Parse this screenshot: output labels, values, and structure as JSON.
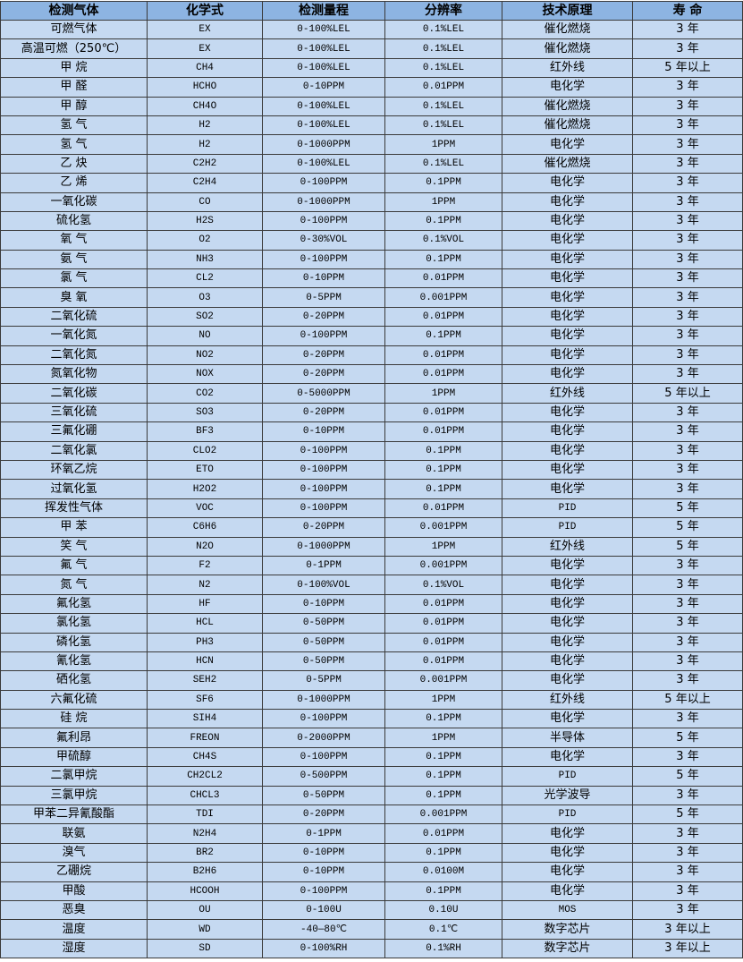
{
  "table": {
    "headers": [
      "检测气体",
      "化学式",
      "检测量程",
      "分辨率",
      "技术原理",
      "寿 命"
    ],
    "rows": [
      [
        "可燃气体",
        "EX",
        "0-100%LEL",
        "0.1%LEL",
        "催化燃烧",
        "3 年"
      ],
      [
        "高温可燃（250℃）",
        "EX",
        "0-100%LEL",
        "0.1%LEL",
        "催化燃烧",
        "3 年"
      ],
      [
        "甲 烷",
        "CH4",
        "0-100%LEL",
        "0.1%LEL",
        "红外线",
        "5 年以上"
      ],
      [
        "甲 醛",
        "HCHO",
        "0-10PPM",
        "0.01PPM",
        "电化学",
        "3 年"
      ],
      [
        "甲 醇",
        "CH4O",
        "0-100%LEL",
        "0.1%LEL",
        "催化燃烧",
        "3 年"
      ],
      [
        "氢 气",
        "H2",
        "0-100%LEL",
        "0.1%LEL",
        "催化燃烧",
        "3 年"
      ],
      [
        "氢 气",
        "H2",
        "0-1000PPM",
        "1PPM",
        "电化学",
        "3 年"
      ],
      [
        "乙 炔",
        "C2H2",
        "0-100%LEL",
        "0.1%LEL",
        "催化燃烧",
        "3 年"
      ],
      [
        "乙 烯",
        "C2H4",
        "0-100PPM",
        "0.1PPM",
        "电化学",
        "3 年"
      ],
      [
        "一氧化碳",
        "CO",
        "0-1000PPM",
        "1PPM",
        "电化学",
        "3 年"
      ],
      [
        "硫化氢",
        "H2S",
        "0-100PPM",
        "0.1PPM",
        "电化学",
        "3 年"
      ],
      [
        "氧 气",
        "O2",
        "0-30%VOL",
        "0.1%VOL",
        "电化学",
        "3 年"
      ],
      [
        "氨 气",
        "NH3",
        "0-100PPM",
        "0.1PPM",
        "电化学",
        "3 年"
      ],
      [
        "氯 气",
        "CL2",
        "0-10PPM",
        "0.01PPM",
        "电化学",
        "3 年"
      ],
      [
        "臭 氧",
        "O3",
        "0-5PPM",
        "0.001PPM",
        "电化学",
        "3 年"
      ],
      [
        "二氧化硫",
        "SO2",
        "0-20PPM",
        "0.01PPM",
        "电化学",
        "3 年"
      ],
      [
        "一氧化氮",
        "NO",
        "0-100PPM",
        "0.1PPM",
        "电化学",
        "3 年"
      ],
      [
        "二氧化氮",
        "NO2",
        "0-20PPM",
        "0.01PPM",
        "电化学",
        "3 年"
      ],
      [
        "氮氧化物",
        "NOX",
        "0-20PPM",
        "0.01PPM",
        "电化学",
        "3 年"
      ],
      [
        "二氧化碳",
        "CO2",
        "0-5000PPM",
        "1PPM",
        "红外线",
        "5 年以上"
      ],
      [
        "三氧化硫",
        "SO3",
        "0-20PPM",
        "0.01PPM",
        "电化学",
        "3 年"
      ],
      [
        "三氟化硼",
        "BF3",
        "0-10PPM",
        "0.01PPM",
        "电化学",
        "3 年"
      ],
      [
        "二氧化氯",
        "CLO2",
        "0-100PPM",
        "0.1PPM",
        "电化学",
        "3 年"
      ],
      [
        "环氧乙烷",
        "ETO",
        "0-100PPM",
        "0.1PPM",
        "电化学",
        "3 年"
      ],
      [
        "过氧化氢",
        "H2O2",
        "0-100PPM",
        "0.1PPM",
        "电化学",
        "3 年"
      ],
      [
        "挥发性气体",
        "VOC",
        "0-100PPM",
        "0.01PPM",
        "PID",
        "5 年"
      ],
      [
        "甲 苯",
        "C6H6",
        "0-20PPM",
        "0.001PPM",
        "PID",
        "5 年"
      ],
      [
        "笑 气",
        "N2O",
        "0-1000PPM",
        "1PPM",
        "红外线",
        "5 年"
      ],
      [
        "氟 气",
        "F2",
        "0-1PPM",
        "0.001PPM",
        "电化学",
        "3 年"
      ],
      [
        "氮 气",
        "N2",
        "0-100%VOL",
        "0.1%VOL",
        "电化学",
        "3 年"
      ],
      [
        "氟化氢",
        "HF",
        "0-10PPM",
        "0.01PPM",
        "电化学",
        "3 年"
      ],
      [
        "氯化氢",
        "HCL",
        "0-50PPM",
        "0.01PPM",
        "电化学",
        "3 年"
      ],
      [
        "磷化氢",
        "PH3",
        "0-50PPM",
        "0.01PPM",
        "电化学",
        "3 年"
      ],
      [
        "氰化氢",
        "HCN",
        "0-50PPM",
        "0.01PPM",
        "电化学",
        "3 年"
      ],
      [
        "硒化氢",
        "SEH2",
        "0-5PPM",
        "0.001PPM",
        "电化学",
        "3 年"
      ],
      [
        "六氟化硫",
        "SF6",
        "0-1000PPM",
        "1PPM",
        "红外线",
        "5 年以上"
      ],
      [
        "硅 烷",
        "SIH4",
        "0-100PPM",
        "0.1PPM",
        "电化学",
        "3 年"
      ],
      [
        "氟利昂",
        "FREON",
        "0-2000PPM",
        "1PPM",
        "半导体",
        "5 年"
      ],
      [
        "甲硫醇",
        "CH4S",
        "0-100PPM",
        "0.1PPM",
        "电化学",
        "3 年"
      ],
      [
        "二氯甲烷",
        "CH2CL2",
        "0-500PPM",
        "0.1PPM",
        "PID",
        "5 年"
      ],
      [
        "三氯甲烷",
        "CHCL3",
        "0-50PPM",
        "0.1PPM",
        "光学波导",
        "3 年"
      ],
      [
        "甲苯二异氰酸酯",
        "TDI",
        "0-20PPM",
        "0.001PPM",
        "PID",
        "5 年"
      ],
      [
        "联氨",
        "N2H4",
        "0-1PPM",
        "0.01PPM",
        "电化学",
        "3 年"
      ],
      [
        "溴气",
        "BR2",
        "0-10PPM",
        "0.1PPM",
        "电化学",
        "3 年"
      ],
      [
        "乙硼烷",
        "B2H6",
        "0-10PPM",
        "0.0100M",
        "电化学",
        "3 年"
      ],
      [
        "甲酸",
        "HCOOH",
        "0-100PPM",
        "0.1PPM",
        "电化学",
        "3 年"
      ],
      [
        "恶臭",
        "OU",
        "0-100U",
        "0.10U",
        "MOS",
        "3 年"
      ],
      [
        "温度",
        "WD",
        "-40—80℃",
        "0.1℃",
        "数字芯片",
        "3 年以上"
      ],
      [
        "湿度",
        "SD",
        "0-100%RH",
        "0.1%RH",
        "数字芯片",
        "3 年以上"
      ]
    ]
  },
  "colors": {
    "header_bg": "#8DB4E2",
    "row_bg": "#C5D9F1",
    "border": "#3a3a3a"
  }
}
